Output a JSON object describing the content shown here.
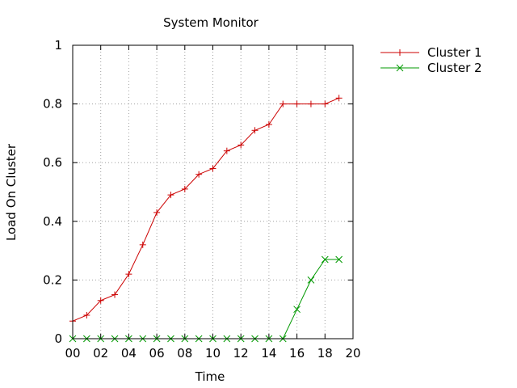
{
  "chart_data": {
    "type": "line",
    "title": "System Monitor",
    "xlabel": "Time",
    "ylabel": "Load On Cluster",
    "xlim": [
      0,
      20
    ],
    "ylim": [
      0,
      1
    ],
    "xticks": [
      0,
      2,
      4,
      6,
      8,
      10,
      12,
      14,
      16,
      18,
      20
    ],
    "xtick_labels": [
      "00",
      "02",
      "04",
      "06",
      "08",
      "10",
      "12",
      "14",
      "16",
      "18",
      "20"
    ],
    "yticks": [
      0,
      0.2,
      0.4,
      0.6,
      0.8,
      1
    ],
    "ytick_labels": [
      "0",
      "0.2",
      "0.4",
      "0.6",
      "0.8",
      "1"
    ],
    "grid": true,
    "legend_position": "outside-top-right",
    "x": [
      0,
      1,
      2,
      3,
      4,
      5,
      6,
      7,
      8,
      9,
      10,
      11,
      12,
      13,
      14,
      15,
      16,
      17,
      18,
      19
    ],
    "series": [
      {
        "name": "Cluster 1",
        "color": "#cc0000",
        "marker": "plus",
        "values": [
          0.06,
          0.08,
          0.13,
          0.15,
          0.22,
          0.32,
          0.43,
          0.49,
          0.51,
          0.56,
          0.58,
          0.64,
          0.66,
          0.71,
          0.73,
          0.8,
          0.8,
          0.8,
          0.8,
          0.82
        ]
      },
      {
        "name": "Cluster 2",
        "color": "#009900",
        "marker": "cross",
        "values": [
          0,
          0,
          0,
          0,
          0,
          0,
          0,
          0,
          0,
          0,
          0,
          0,
          0,
          0,
          0,
          0,
          0.1,
          0.2,
          0.27,
          0.27
        ]
      }
    ]
  }
}
